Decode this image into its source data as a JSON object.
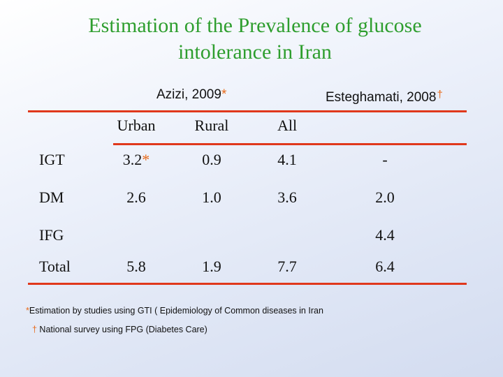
{
  "title": {
    "line1": "Estimation of the Prevalence  of glucose",
    "line2": "intolerance in Iran"
  },
  "sources": {
    "azizi": "Azizi, 2009",
    "azizi_mark": "*",
    "esteghamati": "Esteghamati, 2008",
    "esteghamati_mark": "†"
  },
  "table": {
    "columns": [
      "Urban",
      "Rural",
      "All"
    ],
    "rows": [
      {
        "label": "IGT",
        "urban": "3.2",
        "urban_mark": "*",
        "rural": "0.9",
        "all": "4.1",
        "esteghamati": "-"
      },
      {
        "label": "DM",
        "urban": "2.6",
        "rural": "1.0",
        "all": "3.6",
        "esteghamati": "2.0"
      },
      {
        "label": "IFG",
        "urban": "",
        "rural": "",
        "all": "",
        "esteghamati": "4.4"
      },
      {
        "label": "Total",
        "urban": "5.8",
        "rural": "1.9",
        "all": "7.7",
        "esteghamati": "6.4"
      }
    ]
  },
  "footnotes": {
    "note1_mark": "*",
    "note1": "Estimation by studies using GTI ( Epidemiology of Common diseases in Iran",
    "note2_mark": "†",
    "note2": " National survey using FPG (Diabetes Care)"
  },
  "colors": {
    "title": "#2e9e2e",
    "rule": "#e0381c",
    "marker": "#e86a1a"
  }
}
